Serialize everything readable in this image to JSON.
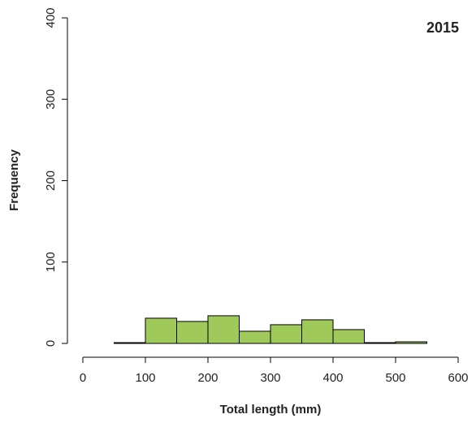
{
  "chart_data": {
    "type": "histogram",
    "title": "2015",
    "x_label": "Total length (mm)",
    "y_label": "Frequency",
    "bins": [
      0,
      50,
      100,
      150,
      200,
      250,
      300,
      350,
      400,
      450,
      500,
      550
    ],
    "counts": [
      0,
      1,
      31,
      27,
      34,
      15,
      23,
      29,
      17,
      1,
      2
    ],
    "color": "#a0c95c",
    "xlim": [
      0,
      600
    ],
    "xticks": [
      0,
      100,
      200,
      300,
      400,
      500,
      600
    ],
    "ylim": [
      0,
      400
    ],
    "yticks": [
      0,
      100,
      200,
      300,
      400
    ]
  }
}
